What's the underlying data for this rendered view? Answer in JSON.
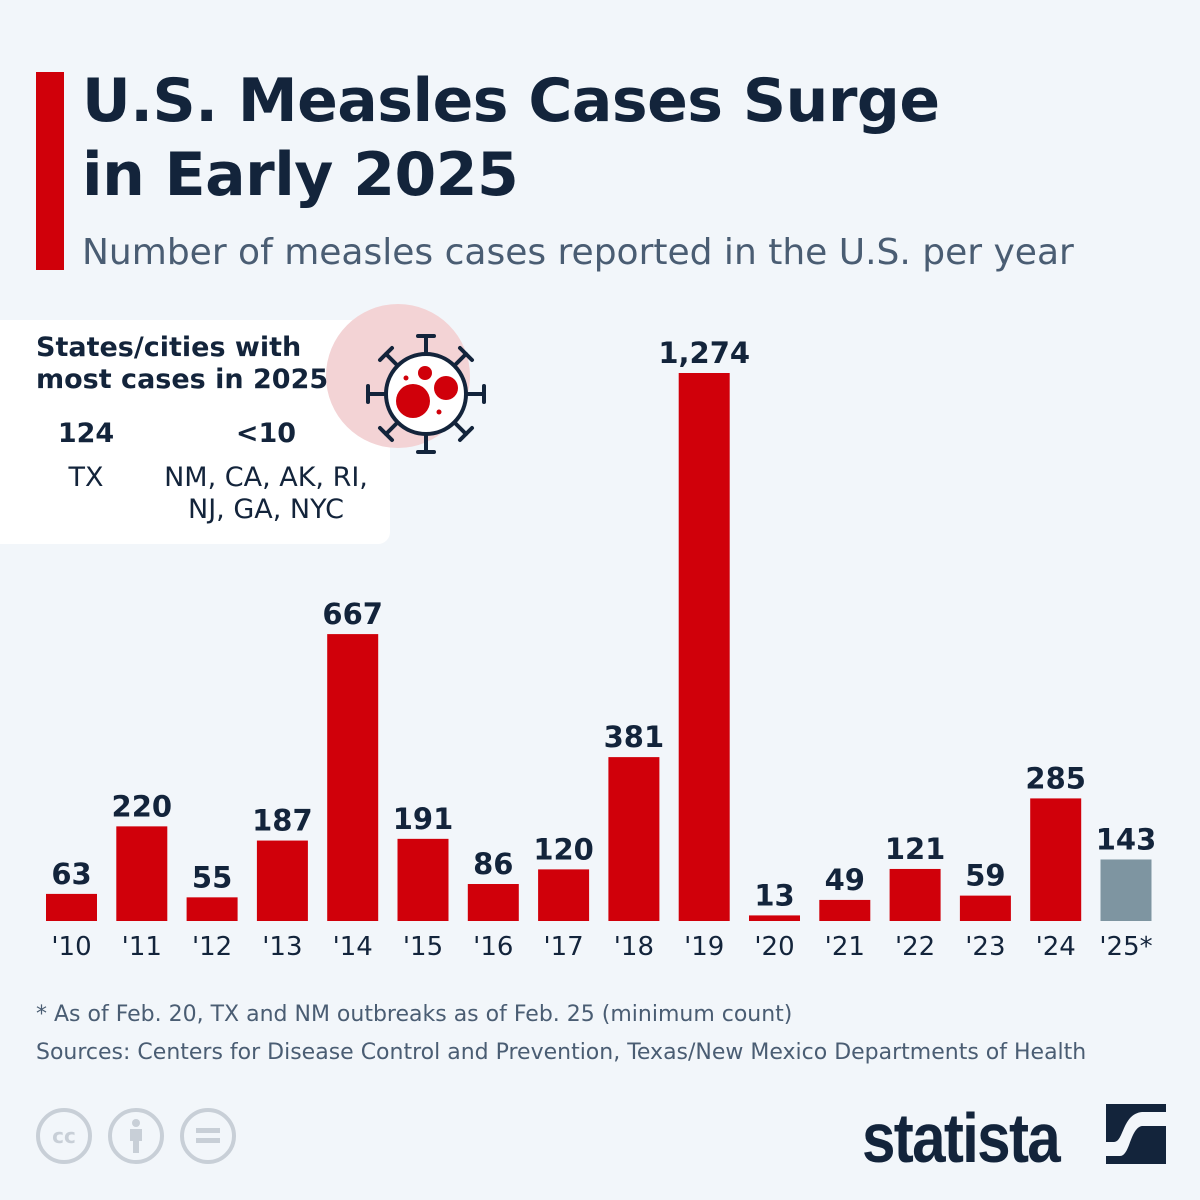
{
  "header": {
    "title_line1": "U.S. Measles Cases Surge",
    "title_line2": "in Early 2025",
    "subtitle": "Number of measles cases reported in the U.S. per year"
  },
  "info_box": {
    "heading_line1": "States/cities with",
    "heading_line2": "most cases in 2025",
    "icon": "virus-icon",
    "stats": [
      {
        "value": "124",
        "label_line1": "TX",
        "label_line2": ""
      },
      {
        "value": "<10",
        "label_line1": "NM, CA, AK, RI,",
        "label_line2": "NJ, GA, NYC"
      }
    ]
  },
  "chart_data": {
    "type": "bar",
    "title": "U.S. Measles Cases Surge in Early 2025",
    "subtitle": "Number of measles cases reported in the U.S. per year",
    "xlabel": "",
    "ylabel": "",
    "categories": [
      "'10",
      "'11",
      "'12",
      "'13",
      "'14",
      "'15",
      "'16",
      "'17",
      "'18",
      "'19",
      "'20",
      "'21",
      "'22",
      "'23",
      "'24",
      "'25*"
    ],
    "values": [
      63,
      220,
      55,
      187,
      667,
      191,
      86,
      120,
      381,
      1274,
      13,
      49,
      121,
      59,
      285,
      143
    ],
    "value_labels": [
      "63",
      "220",
      "55",
      "187",
      "667",
      "191",
      "86",
      "120",
      "381",
      "1,274",
      "13",
      "49",
      "121",
      "59",
      "285",
      "143"
    ],
    "highlight_index": 15,
    "ylim": [
      0,
      1274
    ],
    "grid": false,
    "colors": {
      "default": "#d0000a",
      "highlight": "#7e95a1"
    }
  },
  "footer": {
    "footnote": "* As of Feb. 20, TX and NM outbreaks as of Feb. 25 (minimum count)",
    "sources": "Sources: Centers for Disease Control and Prevention, Texas/New Mexico Departments of Health",
    "license_icons": [
      "cc-icon",
      "attribution-icon",
      "no-derivatives-icon"
    ],
    "cc_text": "cc",
    "brand": "statista"
  }
}
